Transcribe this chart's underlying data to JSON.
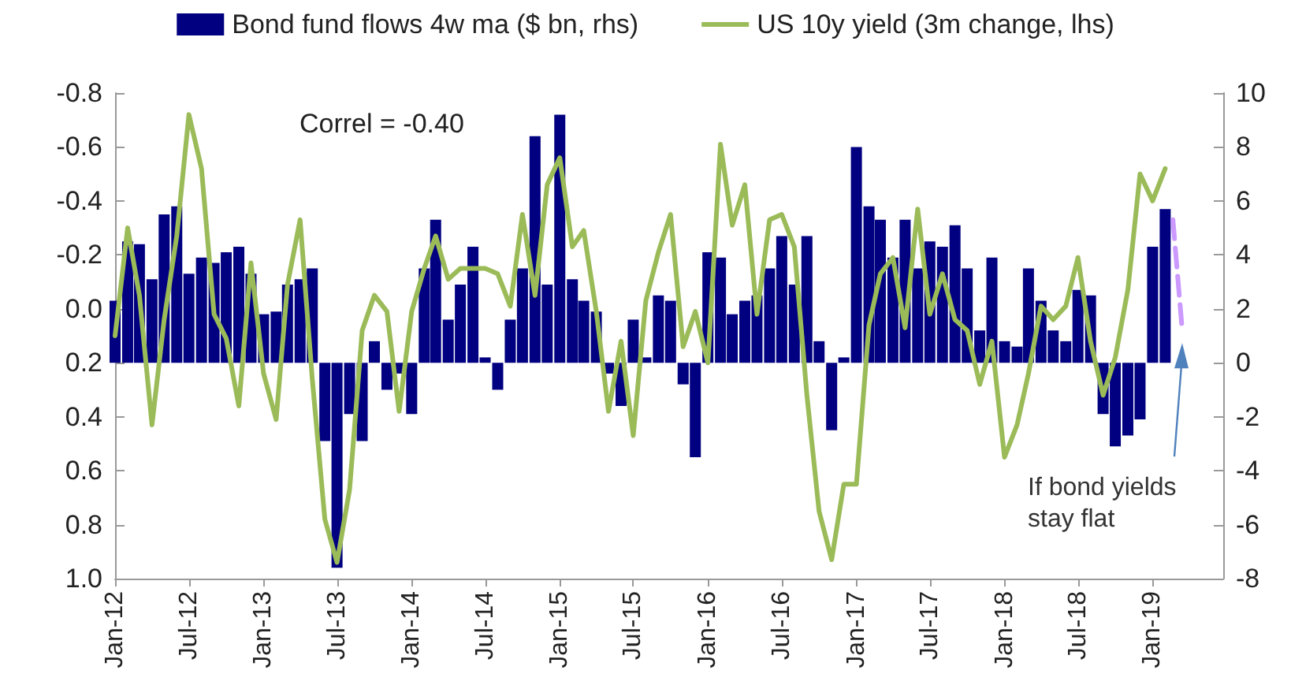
{
  "chart_data": {
    "type": "bar",
    "x": [
      "2012-01",
      "2012-02",
      "2012-03",
      "2012-04",
      "2012-05",
      "2012-06",
      "2012-07",
      "2012-08",
      "2012-09",
      "2012-10",
      "2012-11",
      "2012-12",
      "2013-01",
      "2013-02",
      "2013-03",
      "2013-04",
      "2013-05",
      "2013-06",
      "2013-07",
      "2013-08",
      "2013-09",
      "2013-10",
      "2013-11",
      "2013-12",
      "2014-01",
      "2014-02",
      "2014-03",
      "2014-04",
      "2014-05",
      "2014-06",
      "2014-07",
      "2014-08",
      "2014-09",
      "2014-10",
      "2014-11",
      "2014-12",
      "2015-01",
      "2015-02",
      "2015-03",
      "2015-04",
      "2015-05",
      "2015-06",
      "2015-07",
      "2015-08",
      "2015-09",
      "2015-10",
      "2015-11",
      "2015-12",
      "2016-01",
      "2016-02",
      "2016-03",
      "2016-04",
      "2016-05",
      "2016-06",
      "2016-07",
      "2016-08",
      "2016-09",
      "2016-10",
      "2016-11",
      "2016-12",
      "2017-01",
      "2017-02",
      "2017-03",
      "2017-04",
      "2017-05",
      "2017-06",
      "2017-07",
      "2017-08",
      "2017-09",
      "2017-10",
      "2017-11",
      "2017-12",
      "2018-01",
      "2018-02",
      "2018-03",
      "2018-04",
      "2018-05",
      "2018-06",
      "2018-07",
      "2018-08",
      "2018-09",
      "2018-10",
      "2018-11",
      "2018-12",
      "2019-01",
      "2019-02"
    ],
    "series": [
      {
        "name": "Bond fund flows 4w ma ($ bn, rhs)",
        "axis": "y2",
        "color": "#000080",
        "values": [
          2.3,
          4.5,
          4.4,
          3.1,
          5.5,
          5.8,
          3.3,
          3.9,
          3.7,
          4.1,
          4.3,
          3.3,
          1.8,
          1.9,
          2.9,
          3.1,
          3.5,
          -2.9,
          -7.6,
          -1.9,
          -2.9,
          0.8,
          -1.0,
          -0.4,
          -1.9,
          3.5,
          5.3,
          1.6,
          2.9,
          4.3,
          0.2,
          -1.0,
          1.6,
          3.5,
          8.4,
          2.9,
          9.2,
          3.1,
          2.3,
          1.9,
          -0.4,
          -1.6,
          1.6,
          0.2,
          2.5,
          2.3,
          -0.8,
          -3.5,
          4.1,
          3.9,
          1.8,
          2.3,
          2.5,
          3.5,
          4.7,
          2.9,
          4.7,
          0.8,
          -2.5,
          0.2,
          8.0,
          5.8,
          5.3,
          3.9,
          5.3,
          3.5,
          4.5,
          4.3,
          5.1,
          3.5,
          1.2,
          3.9,
          0.8,
          0.6,
          3.5,
          2.3,
          1.2,
          0.8,
          2.7,
          2.5,
          -1.9,
          -3.1,
          -2.7,
          -2.1,
          4.3,
          5.7
        ]
      },
      {
        "name": "US 10y yield (3m change, lhs)",
        "type": "line",
        "color": "#9bbb59",
        "values": [
          0.1,
          -0.3,
          -0.05,
          0.43,
          0.04,
          -0.27,
          -0.72,
          -0.52,
          0.02,
          0.11,
          0.36,
          -0.17,
          0.24,
          0.41,
          -0.09,
          -0.33,
          0.26,
          0.78,
          0.94,
          0.67,
          0.08,
          -0.05,
          0.01,
          0.38,
          0.01,
          -0.15,
          -0.27,
          -0.11,
          -0.15,
          -0.15,
          -0.15,
          -0.13,
          -0.01,
          -0.35,
          -0.05,
          -0.46,
          -0.56,
          -0.23,
          -0.29,
          0.01,
          0.38,
          0.12,
          0.47,
          -0.03,
          -0.21,
          -0.35,
          0.14,
          0.01,
          0.2,
          -0.61,
          -0.31,
          -0.46,
          0.02,
          -0.33,
          -0.35,
          -0.23,
          0.32,
          0.75,
          0.93,
          0.65,
          0.65,
          0.06,
          -0.13,
          -0.19,
          0.07,
          -0.37,
          0.02,
          -0.13,
          0.04,
          0.08,
          0.28,
          0.12,
          0.55,
          0.43,
          0.24,
          -0.01,
          0.04,
          -0.01,
          -0.19,
          0.12,
          0.32,
          0.18,
          -0.07,
          -0.5,
          -0.4,
          -0.52
        ]
      },
      {
        "type": "line",
        "line_style": "dashed",
        "color": "#cc99ff",
        "x": [
          "2019-02-20",
          "2019-03-15"
        ],
        "values": [
          -0.33,
          0.08
        ]
      }
    ],
    "ylim": [
      1.0,
      -0.8
    ],
    "yticks": [
      -0.8,
      -0.6,
      -0.4,
      -0.2,
      {
        "value": 0,
        "label": "0.0"
      },
      0.2,
      0.4,
      0.6,
      0.8,
      {
        "value": 1,
        "label": "1.0"
      }
    ],
    "y2lim": [
      -8,
      10
    ],
    "y2ticks": [
      -8,
      -6,
      -4,
      -2,
      0,
      2,
      4,
      6,
      8,
      10
    ],
    "xlim": [
      "2012-01",
      "2019-06-24"
    ],
    "xticks": [
      {
        "value": "2012-01",
        "label": "Jan-12"
      },
      {
        "value": "2012-07",
        "label": "Jul-12"
      },
      {
        "value": "2013-01",
        "label": "Jan-13"
      },
      {
        "value": "2013-07",
        "label": "Jul-13"
      },
      {
        "value": "2014-01",
        "label": "Jan-14"
      },
      {
        "value": "2014-07",
        "label": "Jul-14"
      },
      {
        "value": "2015-01",
        "label": "Jan-15"
      },
      {
        "value": "2015-07",
        "label": "Jul-15"
      },
      {
        "value": "2016-01",
        "label": "Jan-16"
      },
      {
        "value": "2016-07",
        "label": "Jul-16"
      },
      {
        "value": "2017-01",
        "label": "Jan-17"
      },
      {
        "value": "2017-07",
        "label": "Jul-17"
      },
      {
        "value": "2018-01",
        "label": "Jan-18"
      },
      {
        "value": "2018-07",
        "label": "Jul-18"
      },
      {
        "value": "2019-01",
        "label": "Jan-19"
      }
    ],
    "annotations": [
      "Correl = -0.40",
      "If bond yields stay flat"
    ],
    "legend": "top",
    "grid": false,
    "marker": "none",
    "line_style": "solid"
  }
}
